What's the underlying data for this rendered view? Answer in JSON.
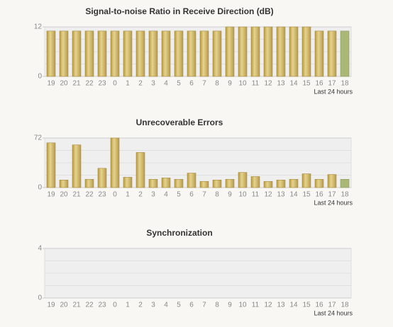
{
  "chart_data": [
    {
      "type": "bar",
      "title": "Signal-to-noise Ratio in Receive Direction (dB)",
      "x_label": "Last 24 hours",
      "categories": [
        "19",
        "20",
        "21",
        "22",
        "23",
        "0",
        "1",
        "2",
        "3",
        "4",
        "5",
        "6",
        "7",
        "8",
        "9",
        "10",
        "11",
        "12",
        "13",
        "14",
        "15",
        "16",
        "17",
        "18"
      ],
      "values": [
        11,
        11,
        11,
        11,
        11,
        11,
        11,
        11,
        11,
        11,
        11,
        11,
        11,
        11,
        12,
        12,
        12,
        12,
        12,
        12,
        12,
        11,
        11,
        11
      ],
      "color": "#d6bf6e",
      "current_color": "#a9b877",
      "ylim": [
        0,
        12
      ],
      "yticks": [
        0,
        12
      ],
      "grid": true
    },
    {
      "type": "bar",
      "title": "Unrecoverable Errors",
      "x_label": "Last 24 hours",
      "categories": [
        "19",
        "20",
        "21",
        "22",
        "23",
        "0",
        "1",
        "2",
        "3",
        "4",
        "5",
        "6",
        "7",
        "8",
        "9",
        "10",
        "11",
        "12",
        "13",
        "14",
        "15",
        "16",
        "17",
        "18"
      ],
      "values": [
        65,
        11,
        62,
        12,
        28,
        72,
        15,
        51,
        12,
        14,
        12,
        21,
        9,
        11,
        12,
        22,
        16,
        9,
        11,
        12,
        20,
        12,
        19,
        12
      ],
      "color": "#d6bf6e",
      "current_color": "#a9b877",
      "ylim": [
        0,
        72
      ],
      "yticks": [
        0,
        72
      ],
      "grid": true
    },
    {
      "type": "bar",
      "title": "Synchronization",
      "x_label": "Last 24 hours",
      "categories": [
        "19",
        "20",
        "21",
        "22",
        "23",
        "0",
        "1",
        "2",
        "3",
        "4",
        "5",
        "6",
        "7",
        "8",
        "9",
        "10",
        "11",
        "12",
        "13",
        "14",
        "15",
        "16",
        "17",
        "18"
      ],
      "color": "#d6bf6e",
      "ylim": [
        0,
        4
      ],
      "yticks": [
        0,
        4
      ],
      "grid": true
    }
  ]
}
